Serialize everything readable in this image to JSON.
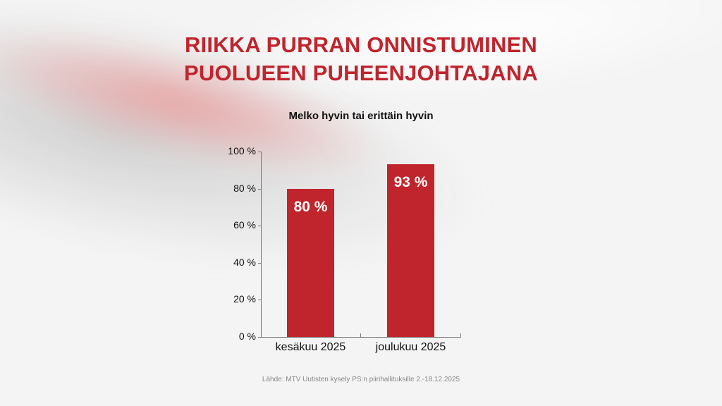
{
  "title_line1": "RIIKKA PURRAN ONNISTUMINEN",
  "title_line2": "PUOLUEEN PUHEENJOHTAJANA",
  "subtitle": "Melko hyvin tai erittäin hyvin",
  "source": "Lähde: MTV Uutisten kysely PS:n piirihallituksille 2.-18.12.2025",
  "colors": {
    "accent": "#c0242c",
    "text": "#111111",
    "source": "#888888"
  },
  "y_ticks": [
    "0 %",
    "20 %",
    "40 %",
    "60 %",
    "80 %",
    "100 %"
  ],
  "bars": [
    {
      "category": "kesäkuu 2025",
      "value": 80,
      "label": "80 %"
    },
    {
      "category": "joulukuu 2025",
      "value": 93,
      "label": "93 %"
    }
  ],
  "chart_data": {
    "type": "bar",
    "title": "RIIKKA PURRAN ONNISTUMINEN PUOLUEEN PUHEENJOHTAJANA",
    "subtitle": "Melko hyvin tai erittäin hyvin",
    "categories": [
      "kesäkuu 2025",
      "joulukuu 2025"
    ],
    "values": [
      80,
      93
    ],
    "data_labels": [
      "80 %",
      "93 %"
    ],
    "xlabel": "",
    "ylabel": "",
    "ylim": [
      0,
      100
    ],
    "yticks": [
      0,
      20,
      40,
      60,
      80,
      100
    ],
    "ytick_labels": [
      "0 %",
      "20 %",
      "40 %",
      "60 %",
      "80 %",
      "100 %"
    ],
    "grid": false,
    "legend": null,
    "color": "#c0242c",
    "source": "Lähde: MTV Uutisten kysely PS:n piirihallituksille 2.-18.12.2025"
  }
}
